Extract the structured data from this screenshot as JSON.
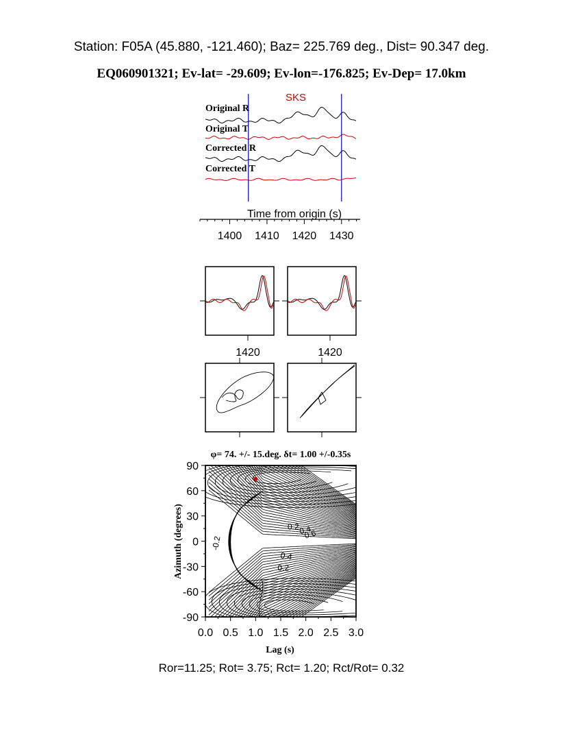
{
  "header": {
    "station_line": "Station: F05A (45.880, -121.460); Baz=  225.769 deg., Dist=   90.347 deg.",
    "event_line": "EQ060901321; Ev-lat= -29.609; Ev-lon=-176.825; Ev-Dep= 17.0km"
  },
  "footer": {
    "ratios": "Ror=11.25; Rot= 3.75; Rct= 1.20; Rct/Rot= 0.32"
  },
  "colors": {
    "trace_r": "#000000",
    "trace_t": "#cc0000",
    "marker": "#0000cc",
    "phase": "#cc0000"
  },
  "chart_data": [
    {
      "type": "line",
      "phase_label": "SKS",
      "xlabel": "Time from origin (s)",
      "xlim": [
        1392,
        1435
      ],
      "x_ticks": [
        "1400",
        "1410",
        "1420",
        "1430"
      ],
      "window_markers": [
        1405,
        1430
      ],
      "series": [
        {
          "name": "Original R",
          "color": "#000000"
        },
        {
          "name": "Original T",
          "color": "#cc0000"
        },
        {
          "name": "Corrected R",
          "color": "#000000"
        },
        {
          "name": "Corrected T",
          "color": "#cc0000"
        }
      ]
    },
    {
      "type": "line",
      "panels": [
        "waveform-original",
        "waveform-corrected"
      ],
      "x_tick": "1420"
    },
    {
      "type": "scatter",
      "panels": [
        "particle-motion-original",
        "particle-motion-corrected"
      ]
    },
    {
      "type": "heatmap",
      "title": "φ= 74. +/- 15.deg. δt= 1.00 +/-0.35s",
      "xlabel": "Lag (s)",
      "ylabel": "Azimuth (degrees)",
      "xlim": [
        0.0,
        3.0
      ],
      "ylim": [
        -90,
        90
      ],
      "x_ticks": [
        "0.0",
        "0.5",
        "1.0",
        "1.5",
        "2.0",
        "2.5",
        "3.0"
      ],
      "y_ticks": [
        "90",
        "60",
        "30",
        "0",
        "-30",
        "-60",
        "-90"
      ],
      "best_fit": {
        "lag": 1.0,
        "azimuth": 74
      },
      "contour_labels": [
        "0.2",
        "0.4",
        "0.6",
        "-0.2",
        "0.4",
        "0.2"
      ]
    }
  ]
}
